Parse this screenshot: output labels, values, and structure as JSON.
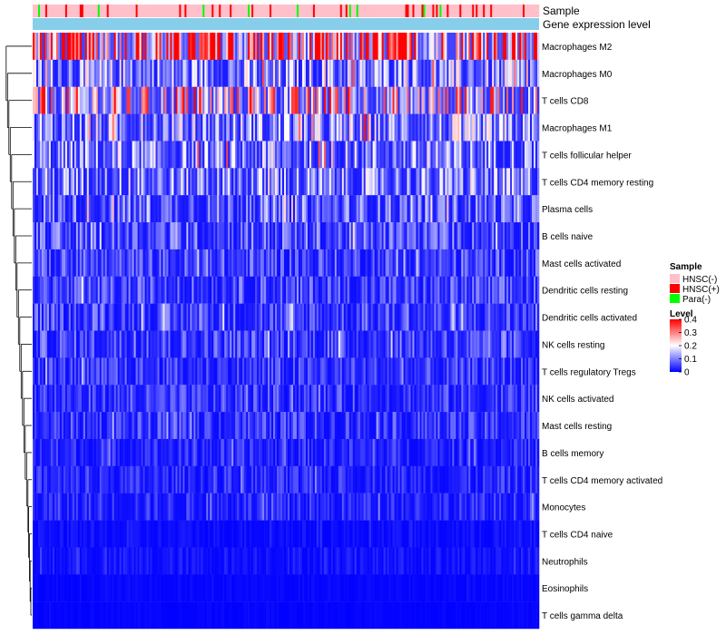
{
  "chart_data": {
    "type": "heatmap",
    "title": "",
    "annotation_labels": [
      "Sample",
      "Gene expression level"
    ],
    "annotation_colors": {
      "gene_expression": "#87ceeb"
    },
    "rows": [
      {
        "name": "Macrophages M2",
        "mean": 0.25
      },
      {
        "name": "Macrophages M0",
        "mean": 0.1
      },
      {
        "name": "T cells CD8",
        "mean": 0.16
      },
      {
        "name": "Macrophages M1",
        "mean": 0.1
      },
      {
        "name": "T cells follicular helper",
        "mean": 0.09
      },
      {
        "name": "T cells CD4 memory resting",
        "mean": 0.09
      },
      {
        "name": "Plasma cells",
        "mean": 0.07
      },
      {
        "name": "B cells naive",
        "mean": 0.06
      },
      {
        "name": "Mast cells activated",
        "mean": 0.05
      },
      {
        "name": "Dendritic cells resting",
        "mean": 0.05
      },
      {
        "name": "Dendritic cells activated",
        "mean": 0.05
      },
      {
        "name": "NK cells resting",
        "mean": 0.05
      },
      {
        "name": "T cells regulatory  Tregs",
        "mean": 0.04
      },
      {
        "name": "NK cells activated",
        "mean": 0.04
      },
      {
        "name": "Mast cells resting",
        "mean": 0.04
      },
      {
        "name": "B cells memory",
        "mean": 0.03
      },
      {
        "name": "T cells CD4 memory activated",
        "mean": 0.03
      },
      {
        "name": "Monocytes",
        "mean": 0.03
      },
      {
        "name": "T cells CD4 naive",
        "mean": 0.01
      },
      {
        "name": "Neutrophils",
        "mean": 0.015
      },
      {
        "name": "Eosinophils",
        "mean": 0.005
      },
      {
        "name": "T cells gamma delta",
        "mean": 0.003
      }
    ],
    "sample_groups": [
      "HNSC(-)",
      "HNSC(+)",
      "Para(-)"
    ],
    "sample_group_proportions": [
      0.85,
      0.11,
      0.04
    ],
    "n_samples": 280,
    "legend": {
      "sample_title": "Sample",
      "sample_entries": [
        {
          "label": "HNSC(-)",
          "color": "#ffc0cb"
        },
        {
          "label": "HNSC(+)",
          "color": "#ff0000"
        },
        {
          "label": "Para(-)",
          "color": "#00ff00"
        }
      ],
      "level_title": "Level",
      "level_ticks": [
        "0.4",
        "0.3",
        "0.2",
        "0.1",
        "0"
      ],
      "level_range": [
        0,
        0.4
      ],
      "color_stops": [
        "#0000ff",
        "#ffffff",
        "#ff0000"
      ]
    },
    "dendrogram": "rows clustered (left side)"
  }
}
